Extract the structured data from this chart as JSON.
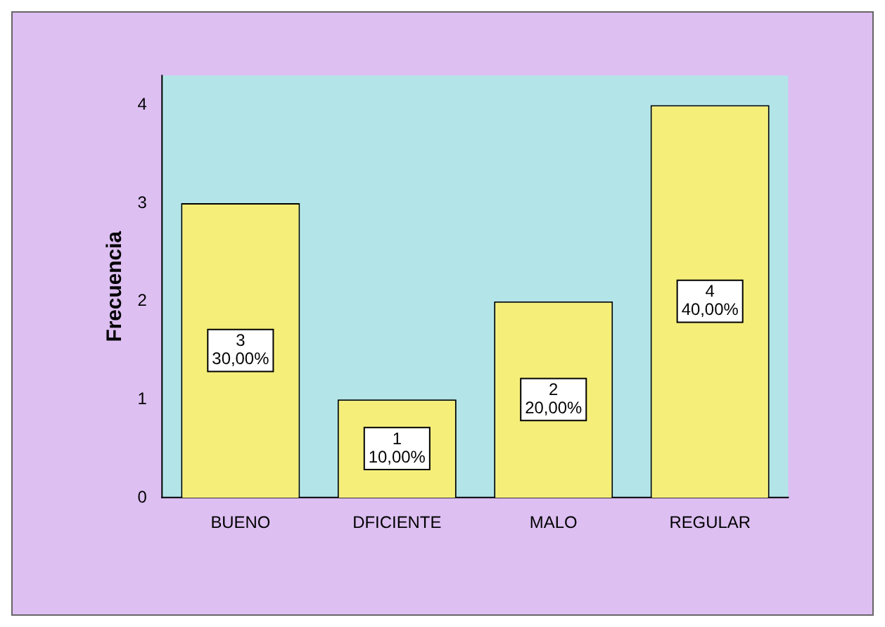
{
  "chart_data": {
    "type": "bar",
    "ylabel": "Frecuencia",
    "categories": [
      "BUENO",
      "DFICIENTE",
      "MALO",
      "REGULAR"
    ],
    "values": [
      3,
      1,
      2,
      4
    ],
    "color": "#f5ef7a",
    "value_labels": [
      "3\n30,00%",
      "1\n10,00%",
      "2\n20,00%",
      "4\n40,00%"
    ],
    "ylim": [
      0,
      4.3
    ],
    "yticks": [
      0,
      1,
      2,
      3,
      4
    ],
    "grid": false,
    "legend": false
  }
}
